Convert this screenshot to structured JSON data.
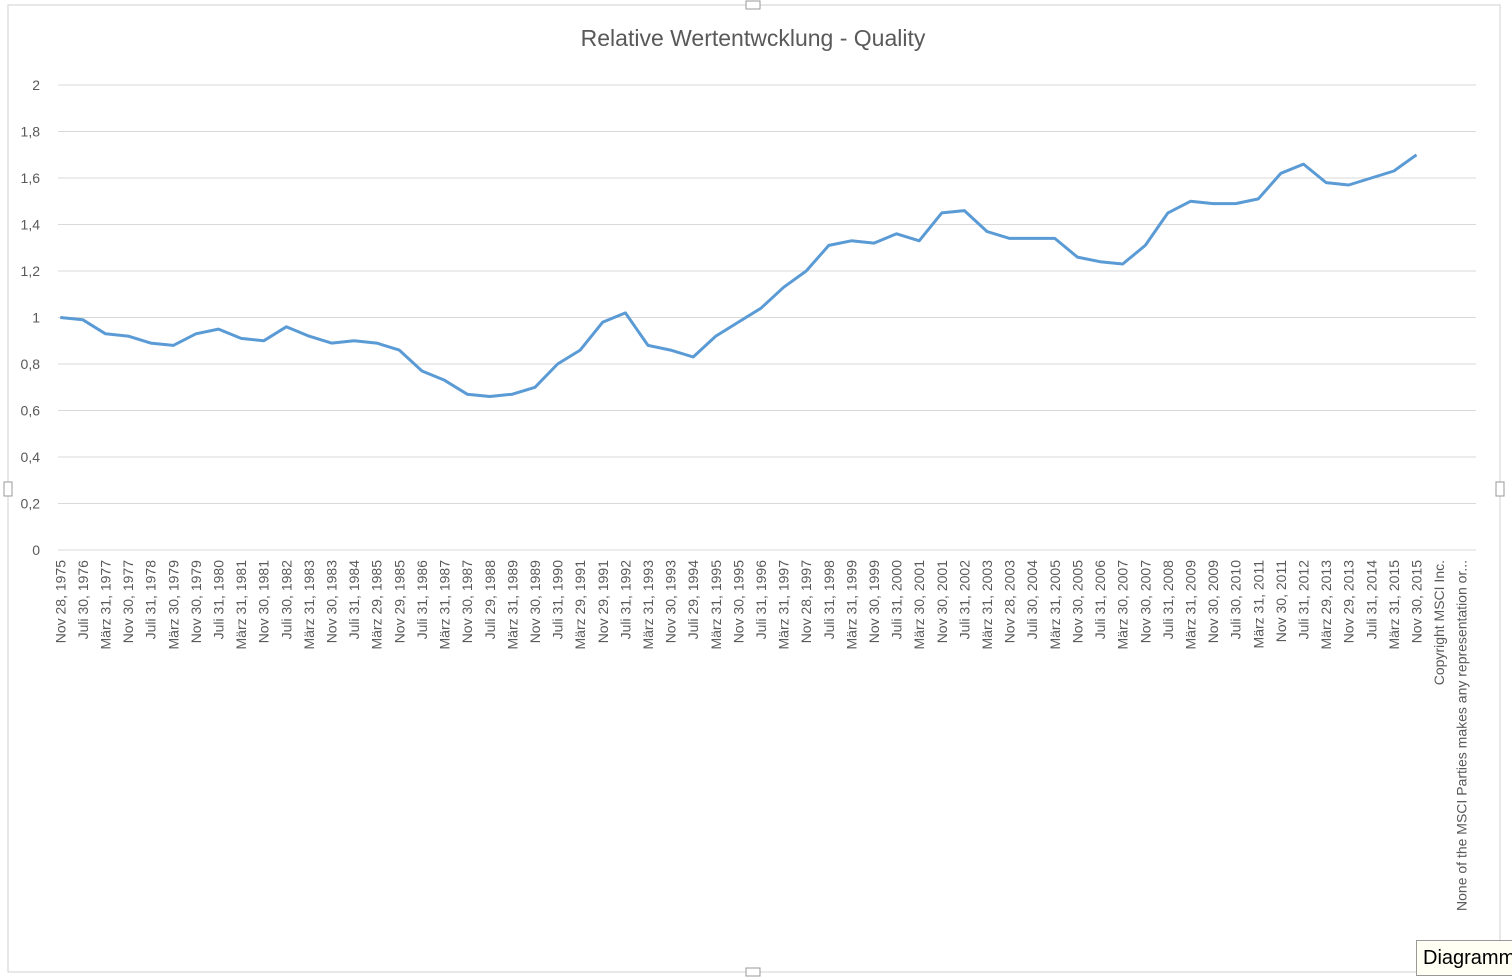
{
  "chart_data": {
    "type": "line",
    "title": "Relative Wertentwcklung - Quality",
    "categories": [
      "Nov 28, 1975",
      "Juli 30, 1976",
      "März 31, 1977",
      "Nov 30, 1977",
      "Juli 31, 1978",
      "März 30, 1979",
      "Nov 30, 1979",
      "Juli 31, 1980",
      "März 31, 1981",
      "Nov 30, 1981",
      "Juli 30, 1982",
      "März 31, 1983",
      "Nov 30, 1983",
      "Juli 31, 1984",
      "März 29, 1985",
      "Nov 29, 1985",
      "Juli 31, 1986",
      "März 31, 1987",
      "Nov 30, 1987",
      "Juli 29, 1988",
      "März 31, 1989",
      "Nov 30, 1989",
      "Juli 31, 1990",
      "März 29, 1991",
      "Nov 29, 1991",
      "Juli 31, 1992",
      "März 31, 1993",
      "Nov 30, 1993",
      "Juli 29, 1994",
      "März 31, 1995",
      "Nov 30, 1995",
      "Juli 31, 1996",
      "März 31, 1997",
      "Nov 28, 1997",
      "Juli 31, 1998",
      "März 31, 1999",
      "Nov 30, 1999",
      "Juli 31, 2000",
      "März 30, 2001",
      "Nov 30, 2001",
      "Juli 31, 2002",
      "März 31, 2003",
      "Nov 28, 2003",
      "Juli 30, 2004",
      "März 31, 2005",
      "Nov 30, 2005",
      "Juli 31, 2006",
      "März 30, 2007",
      "Nov 30, 2007",
      "Juli 31, 2008",
      "März 31, 2009",
      "Nov 30, 2009",
      "Juli 30, 2010",
      "März 31, 2011",
      "Nov 30, 2011",
      "Juli 31, 2012",
      "März 29, 2013",
      "Nov 29, 2013",
      "Juli 31, 2014",
      "März 31, 2015",
      "Nov 30, 2015",
      "Copyright MSCI Inc.",
      "None of the MSCI Parties makes any representation or..."
    ],
    "values": [
      1.0,
      0.99,
      0.93,
      0.92,
      0.89,
      0.88,
      0.93,
      0.95,
      0.91,
      0.9,
      0.96,
      0.92,
      0.89,
      0.9,
      0.89,
      0.86,
      0.77,
      0.73,
      0.67,
      0.66,
      0.67,
      0.7,
      0.8,
      0.86,
      0.98,
      1.02,
      0.88,
      0.86,
      0.83,
      0.92,
      0.98,
      1.04,
      1.13,
      1.2,
      1.31,
      1.33,
      1.32,
      1.36,
      1.33,
      1.45,
      1.46,
      1.37,
      1.34,
      1.34,
      1.34,
      1.26,
      1.24,
      1.23,
      1.31,
      1.45,
      1.5,
      1.49,
      1.49,
      1.51,
      1.62,
      1.66,
      1.58,
      1.57,
      1.6,
      1.63,
      1.7,
      null,
      null
    ],
    "color": "#5b9bd5",
    "ylim": [
      0,
      2
    ],
    "yticks": [
      0,
      {
        "value": 0.2,
        "label": "0,2"
      },
      {
        "value": 0.4,
        "label": "0,4"
      },
      {
        "value": 0.6,
        "label": "0,6"
      },
      {
        "value": 0.8,
        "label": "0,8"
      },
      1,
      {
        "value": 1.2,
        "label": "1,2"
      },
      {
        "value": 1.4,
        "label": "1,4"
      },
      {
        "value": 1.6,
        "label": "1,6"
      },
      {
        "value": 1.8,
        "label": "1,8"
      },
      2
    ],
    "grid": true
  },
  "tooltip": "Diagramm"
}
